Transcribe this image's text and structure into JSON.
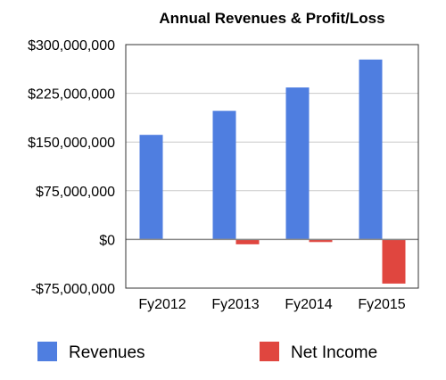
{
  "chart_data": {
    "type": "bar",
    "title": "Annual Revenues & Profit/Loss",
    "xlabel": "",
    "ylabel": "",
    "categories": [
      "Fy2012",
      "Fy2013",
      "Fy2014",
      "Fy2015"
    ],
    "series": [
      {
        "name": "Revenues",
        "color": "#4f7ee0",
        "values": [
          161000000,
          198000000,
          234000000,
          277000000
        ]
      },
      {
        "name": "Net Income",
        "color": "#e0463f",
        "values": [
          0,
          -7500000,
          -4000000,
          -68000000
        ]
      }
    ],
    "ylim": [
      -75000000,
      300000000
    ],
    "yticks": [
      300000000,
      225000000,
      150000000,
      75000000,
      0,
      -75000000
    ],
    "ytick_labels": [
      "$300,000,000",
      "$225,000,000",
      "$150,000,000",
      "$75,000,000",
      "$0",
      "-$75,000,000"
    ],
    "grid": true,
    "legend_position": "bottom"
  }
}
